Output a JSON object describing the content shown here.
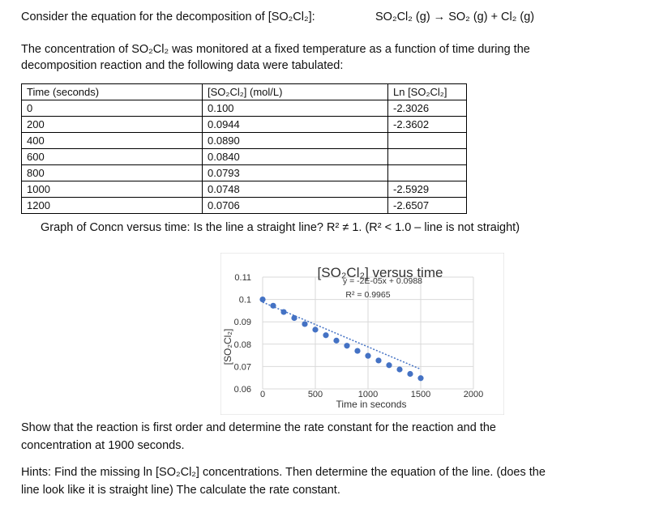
{
  "intro": {
    "line1": "Consider the equation for the decomposition of [SO₂Cl₂]:",
    "equation": "SO₂Cl₂ (g) → SO₂ (g) + Cl₂ (g)",
    "line2": "The concentration of SO₂Cl₂ was monitored at a fixed temperature as a function of time during the",
    "line3": "decomposition reaction and the following data were tabulated:"
  },
  "table": {
    "headers": [
      "Time (seconds)",
      "[SO₂Cl₂] (mol/L)",
      "Ln [SO₂Cl₂]"
    ],
    "rows": [
      [
        "0",
        "0.100",
        "-2.3026"
      ],
      [
        "200",
        "0.0944",
        "-2.3602"
      ],
      [
        "400",
        "0.0890",
        ""
      ],
      [
        "600",
        "0.0840",
        ""
      ],
      [
        "800",
        "0.0793",
        ""
      ],
      [
        "1000",
        "0.0748",
        "-2.5929"
      ],
      [
        "1200",
        "0.0706",
        "-2.6507"
      ]
    ]
  },
  "graph_question": "Graph of Concn versus time: Is the line a straight line? R² ≠ 1. (R² < 1.0 – line is not straight)",
  "chart_data": {
    "type": "scatter",
    "title": "[SO₂Cl₂] versus time",
    "xlabel": "Time in seconds",
    "ylabel": "[SO₂Cl₂]",
    "xlim": [
      0,
      2000
    ],
    "ylim": [
      0.06,
      0.11
    ],
    "x_ticks": [
      "0",
      "500",
      "1000",
      "1500",
      "2000"
    ],
    "y_ticks": [
      "0.11",
      "0.1",
      "0.09",
      "0.08",
      "0.07",
      "0.06"
    ],
    "grid": true,
    "trendline": {
      "equation": "y = -2E-05x + 0.0988",
      "r_squared": "R² = 0.9965",
      "slope": -2e-05,
      "intercept": 0.0988
    },
    "series": [
      {
        "marker_color": "#4472C4",
        "x": [
          0,
          100,
          200,
          300,
          400,
          500,
          600,
          700,
          800,
          900,
          1000,
          1100,
          1200,
          1300,
          1400,
          1500
        ],
        "y": [
          0.1,
          0.0972,
          0.0944,
          0.0917,
          0.089,
          0.0865,
          0.084,
          0.0816,
          0.0793,
          0.077,
          0.0748,
          0.0727,
          0.0706,
          0.0687,
          0.0667,
          0.0648
        ]
      }
    ]
  },
  "question": {
    "line1": "Show that the reaction is first order and determine the rate constant for the reaction and the",
    "line2": "concentration at 1900 seconds."
  },
  "hints": {
    "line1": "Hints: Find the missing ln [SO₂Cl₂] concentrations. Then determine the equation of the line. (does the",
    "line2": "line look like it is straight line) The calculate the rate constant."
  }
}
